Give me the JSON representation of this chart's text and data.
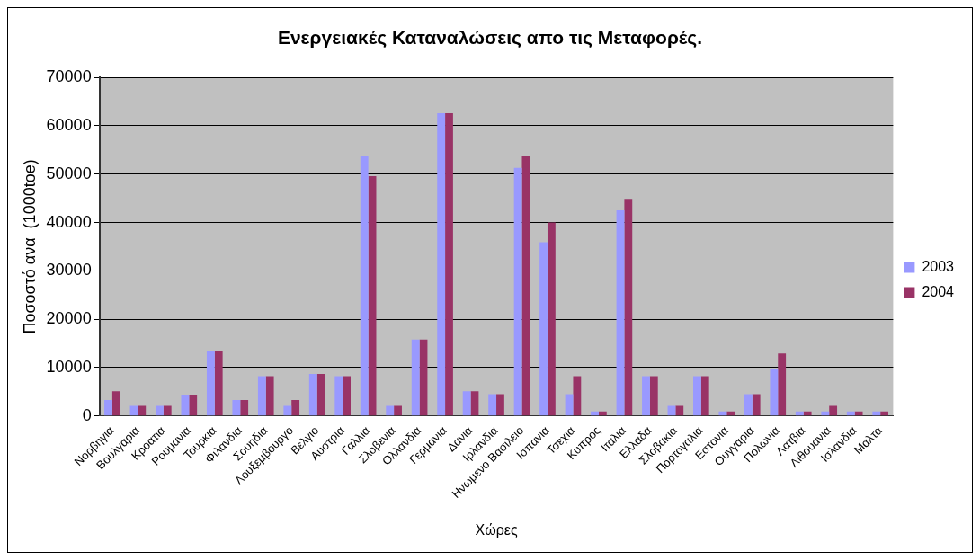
{
  "chart_data": {
    "type": "bar",
    "title": "Ενεργειακές Καταναλώσεις απο τις Μεταφορές.",
    "xlabel": "Χώρες",
    "ylabel": "Ποσοστό ανα  (1000toe)",
    "categories": [
      "Νορβηγια",
      "Βουλγαρια",
      "Κροατια",
      "Ρουμανια",
      "Τουρκια",
      "Φιλανδια",
      "Σουηδια",
      "Λουξεμβουργο",
      "Βελγιο",
      "Αυστρια",
      "Γαλλια",
      "Σλοβενια",
      "Ολλανδια",
      "Γερμανια",
      "Δανια",
      "Ιρλανδια",
      "Ηνωμενο Βασιλειο",
      "Ισπανια",
      "Τσεχια",
      "Κυπρος",
      "Ιταλια",
      "Ελλαδα",
      "Σλοβακια",
      "Πορτογαλια",
      "Εστονια",
      "Ουγγαρια",
      "Πολωνια",
      "Λατβια",
      "Λιθουανια",
      "Ισλανδια",
      "Μαλτα"
    ],
    "series": [
      {
        "name": "2003",
        "color": "#9999ff",
        "values": [
          3300,
          2100,
          2100,
          4400,
          13400,
          3300,
          8200,
          2100,
          8700,
          8200,
          53800,
          2100,
          15800,
          62600,
          5100,
          4500,
          51300,
          35900,
          4500,
          900,
          42500,
          8200,
          2100,
          8200,
          900,
          4500,
          9800,
          900,
          900,
          900,
          900
        ]
      },
      {
        "name": "2004",
        "color": "#993366",
        "values": [
          5100,
          2100,
          2100,
          4400,
          13400,
          3300,
          8200,
          3300,
          8700,
          8200,
          49600,
          2100,
          15800,
          62600,
          5100,
          4500,
          53800,
          40000,
          8200,
          900,
          44900,
          8200,
          2100,
          8200,
          900,
          4500,
          12900,
          900,
          2100,
          900,
          900
        ]
      }
    ],
    "ylim": [
      0,
      70000
    ],
    "yticks": [
      0,
      10000,
      20000,
      30000,
      40000,
      50000,
      60000,
      70000
    ],
    "grid": "y",
    "legend": "right"
  }
}
